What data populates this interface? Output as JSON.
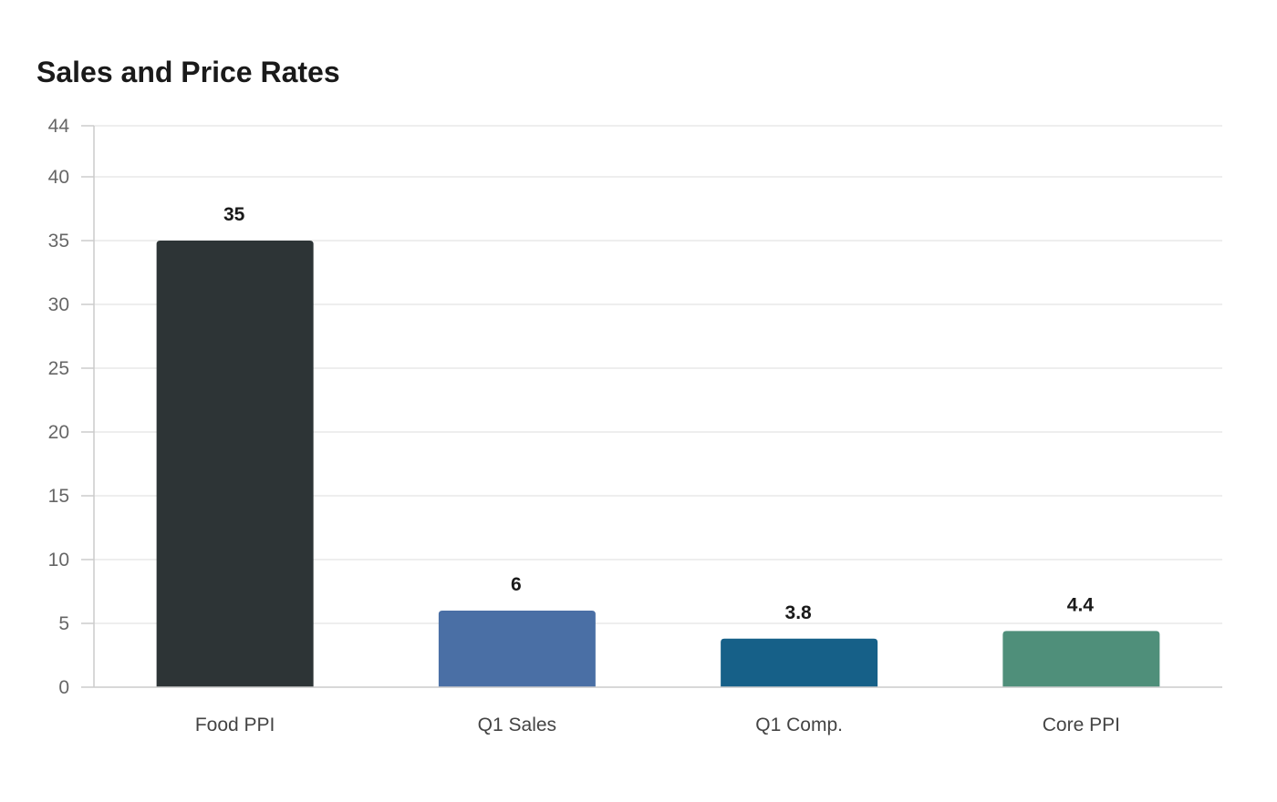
{
  "chart_data": {
    "type": "bar",
    "title": "Sales and Price Rates",
    "xlabel": "",
    "ylabel": "",
    "categories": [
      "Food PPI",
      "Q1 Sales",
      "Q1 Comp.",
      "Core PPI"
    ],
    "values": [
      35,
      6,
      3.8,
      4.4
    ],
    "value_labels": [
      "35",
      "6",
      "3.8",
      "4.4"
    ],
    "colors": [
      "#2d3436",
      "#4a6fa5",
      "#166088",
      "#4f8f7a"
    ],
    "ylim": [
      0,
      44
    ],
    "yticks": [
      0,
      5,
      10,
      15,
      20,
      25,
      30,
      35,
      40,
      44
    ],
    "grid": true,
    "legend": "none"
  }
}
